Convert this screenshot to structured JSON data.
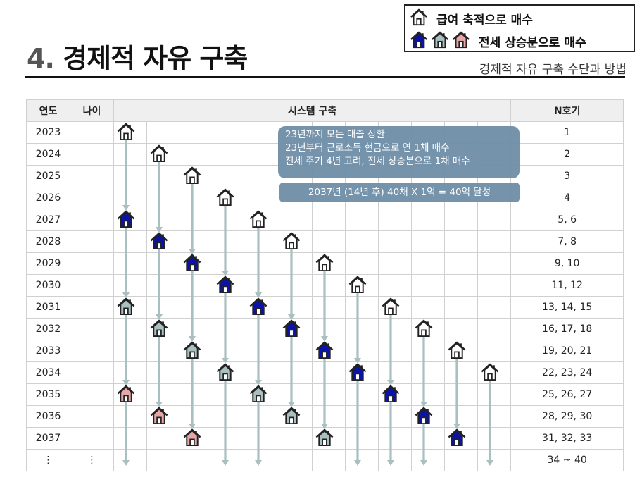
{
  "page": {
    "title_num": "4.",
    "title_text": "경제적 자유 구축",
    "subtitle": "경제적 자유 구축 수단과 방법"
  },
  "legend": {
    "row1_label": "급여 축적으로 매수",
    "row2_label": "전세 상승분으로 매수",
    "icons_row1": [
      "house-white-icon"
    ],
    "icons_row2": [
      "house-blue-icon",
      "house-gray-icon",
      "house-pink-icon"
    ]
  },
  "colors": {
    "white": "#ffffff",
    "blue": "#0b12a8",
    "gray": "#a9bfc0",
    "pink": "#e8a6a6",
    "arrow": "#a9bfc0",
    "note_bg": "#6f8ea8"
  },
  "table": {
    "headers": {
      "year": "연도",
      "age": "나이",
      "system": "시스템 구축",
      "nth": "N호기"
    },
    "rows": [
      {
        "year": "2023",
        "age": "",
        "nth": "1"
      },
      {
        "year": "2024",
        "age": "",
        "nth": "2"
      },
      {
        "year": "2025",
        "age": "",
        "nth": "3"
      },
      {
        "year": "2026",
        "age": "",
        "nth": "4"
      },
      {
        "year": "2027",
        "age": "",
        "nth": "5, 6"
      },
      {
        "year": "2028",
        "age": "",
        "nth": "7, 8"
      },
      {
        "year": "2029",
        "age": "",
        "nth": "9, 10"
      },
      {
        "year": "2030",
        "age": "",
        "nth": "11, 12"
      },
      {
        "year": "2031",
        "age": "",
        "nth": "13, 14, 15"
      },
      {
        "year": "2032",
        "age": "",
        "nth": "16, 17, 18"
      },
      {
        "year": "2033",
        "age": "",
        "nth": "19, 20, 21"
      },
      {
        "year": "2034",
        "age": "",
        "nth": "22, 23, 24"
      },
      {
        "year": "2035",
        "age": "",
        "nth": "25, 26, 27"
      },
      {
        "year": "2036",
        "age": "",
        "nth": "28, 29, 30"
      },
      {
        "year": "2037",
        "age": "",
        "nth": "31, 32, 33"
      },
      {
        "year": "⋮",
        "age": "⋮",
        "nth": "34 ~ 40"
      }
    ]
  },
  "notes": {
    "box1_lines": [
      "23년까지 모든 대출 상환",
      "23년부터 근로소득 현금으로 연 1채 매수",
      "전세 주기 4년 고려, 전세 상승분으로 1채 매수"
    ],
    "box2": "2037년 (14년 후) 40채 X 1억 = 40억 달성"
  },
  "houses": [
    {
      "col": 0,
      "row": 0,
      "color": "white"
    },
    {
      "col": 1,
      "row": 1,
      "color": "white"
    },
    {
      "col": 2,
      "row": 2,
      "color": "white"
    },
    {
      "col": 3,
      "row": 3,
      "color": "white"
    },
    {
      "col": 0,
      "row": 4,
      "color": "blue"
    },
    {
      "col": 4,
      "row": 4,
      "color": "white"
    },
    {
      "col": 1,
      "row": 5,
      "color": "blue"
    },
    {
      "col": 5,
      "row": 5,
      "color": "white"
    },
    {
      "col": 2,
      "row": 6,
      "color": "blue"
    },
    {
      "col": 6,
      "row": 6,
      "color": "white"
    },
    {
      "col": 3,
      "row": 7,
      "color": "blue"
    },
    {
      "col": 7,
      "row": 7,
      "color": "white"
    },
    {
      "col": 0,
      "row": 8,
      "color": "gray"
    },
    {
      "col": 4,
      "row": 8,
      "color": "blue"
    },
    {
      "col": 8,
      "row": 8,
      "color": "white"
    },
    {
      "col": 1,
      "row": 9,
      "color": "gray"
    },
    {
      "col": 5,
      "row": 9,
      "color": "blue"
    },
    {
      "col": 9,
      "row": 9,
      "color": "white"
    },
    {
      "col": 2,
      "row": 10,
      "color": "gray"
    },
    {
      "col": 6,
      "row": 10,
      "color": "blue"
    },
    {
      "col": 10,
      "row": 10,
      "color": "white"
    },
    {
      "col": 3,
      "row": 11,
      "color": "gray"
    },
    {
      "col": 7,
      "row": 11,
      "color": "blue"
    },
    {
      "col": 11,
      "row": 11,
      "color": "white"
    },
    {
      "col": 0,
      "row": 12,
      "color": "pink"
    },
    {
      "col": 4,
      "row": 12,
      "color": "gray"
    },
    {
      "col": 8,
      "row": 12,
      "color": "blue"
    },
    {
      "col": 1,
      "row": 13,
      "color": "pink"
    },
    {
      "col": 5,
      "row": 13,
      "color": "gray"
    },
    {
      "col": 9,
      "row": 13,
      "color": "blue"
    },
    {
      "col": 2,
      "row": 14,
      "color": "pink"
    },
    {
      "col": 6,
      "row": 14,
      "color": "gray"
    },
    {
      "col": 10,
      "row": 14,
      "color": "blue"
    }
  ],
  "arrows": [
    {
      "col": 0,
      "from": 0,
      "to": 4
    },
    {
      "col": 0,
      "from": 4,
      "to": 8
    },
    {
      "col": 0,
      "from": 8,
      "to": 12
    },
    {
      "col": 0,
      "from": 12,
      "to": 15
    },
    {
      "col": 1,
      "from": 1,
      "to": 5
    },
    {
      "col": 1,
      "from": 5,
      "to": 9
    },
    {
      "col": 1,
      "from": 9,
      "to": 13
    },
    {
      "col": 2,
      "from": 2,
      "to": 6
    },
    {
      "col": 2,
      "from": 6,
      "to": 10
    },
    {
      "col": 2,
      "from": 10,
      "to": 14
    },
    {
      "col": 3,
      "from": 3,
      "to": 7
    },
    {
      "col": 3,
      "from": 7,
      "to": 11
    },
    {
      "col": 3,
      "from": 11,
      "to": 15
    },
    {
      "col": 4,
      "from": 4,
      "to": 8
    },
    {
      "col": 4,
      "from": 8,
      "to": 12
    },
    {
      "col": 4,
      "from": 12,
      "to": 15
    },
    {
      "col": 5,
      "from": 5,
      "to": 9
    },
    {
      "col": 5,
      "from": 9,
      "to": 13
    },
    {
      "col": 6,
      "from": 6,
      "to": 10
    },
    {
      "col": 6,
      "from": 10,
      "to": 14
    },
    {
      "col": 7,
      "from": 7,
      "to": 11
    },
    {
      "col": 7,
      "from": 11,
      "to": 15
    },
    {
      "col": 8,
      "from": 8,
      "to": 12
    },
    {
      "col": 8,
      "from": 12,
      "to": 15
    },
    {
      "col": 9,
      "from": 9,
      "to": 13
    },
    {
      "col": 9,
      "from": 13,
      "to": 15
    },
    {
      "col": 10,
      "from": 10,
      "to": 14
    },
    {
      "col": 11,
      "from": 11,
      "to": 15
    }
  ]
}
